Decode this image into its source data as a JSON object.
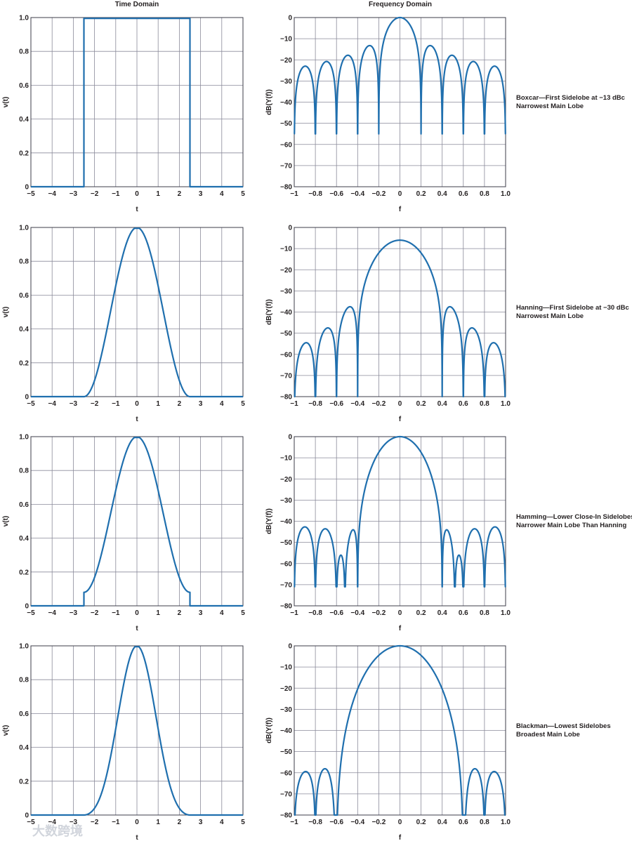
{
  "headers": {
    "time": "Time Domain",
    "freq": "Frequency Domain"
  },
  "watermark": "大数跨境",
  "colors": {
    "curve": "#1f6fae",
    "grid": "#8a8a9a",
    "frame": "#3c3c4a",
    "text": "#231f20"
  },
  "chart_data": [
    {
      "type": "line",
      "title": "",
      "xlabel": "t",
      "ylabel": "v(t)",
      "xlim": [
        -5,
        5
      ],
      "ylim": [
        0,
        1.0
      ],
      "xticks": [
        -5,
        -4,
        -3,
        -2,
        -1,
        0,
        1,
        2,
        3,
        4,
        5
      ],
      "yticks": [
        0,
        0.2,
        0.4,
        0.6,
        0.8,
        1.0
      ],
      "xtick_labels": [
        "−5",
        "−4",
        "−3",
        "−2",
        "−1",
        "0",
        "1",
        "2",
        "3",
        "4",
        "5"
      ],
      "ytick_labels": [
        "0",
        "0.2",
        "0.4",
        "0.6",
        "0.8",
        "1.0"
      ],
      "series": [
        {
          "name": "boxcar",
          "window": "boxcar",
          "support": [
            -2.5,
            2.5
          ]
        }
      ]
    },
    {
      "type": "line",
      "title": "",
      "xlabel": "f",
      "ylabel": "dB(Y(f))",
      "xlim": [
        -1,
        1
      ],
      "ylim": [
        -80,
        0
      ],
      "xticks": [
        -1,
        -0.8,
        -0.6,
        -0.4,
        -0.2,
        0,
        0.2,
        0.4,
        0.6,
        0.8,
        1.0
      ],
      "yticks": [
        0,
        -10,
        -20,
        -30,
        -40,
        -50,
        -60,
        -70,
        -80
      ],
      "xtick_labels": [
        "−1",
        "−0.8",
        "−0.6",
        "−0.4",
        "−0.2",
        "0",
        "0.2",
        "0.4",
        "0.6",
        "0.8",
        "1.0"
      ],
      "ytick_labels": [
        "0",
        "−10",
        "−20",
        "−30",
        "−40",
        "−50",
        "−60",
        "−70",
        "−80"
      ],
      "series": [
        {
          "name": "boxcar spectrum",
          "window": "boxcar",
          "null_spacing": 0.1,
          "floor_db": -55
        }
      ],
      "caption": [
        "Boxcar—First Sidelobe at −13 dBc",
        "Narrowest Main Lobe"
      ]
    },
    {
      "type": "line",
      "title": "",
      "xlabel": "t",
      "ylabel": "v(t)",
      "xlim": [
        -5,
        5
      ],
      "ylim": [
        0,
        1.0
      ],
      "xticks": [
        -5,
        -4,
        -3,
        -2,
        -1,
        0,
        1,
        2,
        3,
        4,
        5
      ],
      "yticks": [
        0,
        0.2,
        0.4,
        0.6,
        0.8,
        1.0
      ],
      "xtick_labels": [
        "−5",
        "−4",
        "−3",
        "−2",
        "−1",
        "0",
        "1",
        "2",
        "3",
        "4",
        "5"
      ],
      "ytick_labels": [
        "0",
        "0.2",
        "0.4",
        "0.6",
        "0.8",
        "1.0"
      ],
      "series": [
        {
          "name": "hanning",
          "window": "hanning",
          "support": [
            -2.5,
            2.5
          ]
        }
      ]
    },
    {
      "type": "line",
      "title": "",
      "xlabel": "f",
      "ylabel": "dB(Y(f))",
      "xlim": [
        -1,
        1
      ],
      "ylim": [
        -80,
        0
      ],
      "xticks": [
        -1,
        -0.8,
        -0.6,
        -0.4,
        -0.2,
        0,
        0.2,
        0.4,
        0.6,
        0.8,
        1.0
      ],
      "yticks": [
        0,
        -10,
        -20,
        -30,
        -40,
        -50,
        -60,
        -70,
        -80
      ],
      "xtick_labels": [
        "−1",
        "−0.8",
        "−0.6",
        "−0.4",
        "−0.2",
        "0",
        "0.2",
        "0.4",
        "0.6",
        "0.8",
        "1.0"
      ],
      "ytick_labels": [
        "0",
        "−10",
        "−20",
        "−30",
        "−40",
        "−50",
        "−60",
        "−70",
        "−80"
      ],
      "series": [
        {
          "name": "hanning spectrum",
          "window": "hanning",
          "null_spacing": 0.1,
          "floor_db": -80
        }
      ],
      "caption": [
        "Hanning—First Sidelobe at −30 dBc",
        "Narrowest Main Lobe"
      ]
    },
    {
      "type": "line",
      "title": "",
      "xlabel": "t",
      "ylabel": "v(t)",
      "xlim": [
        -5,
        5
      ],
      "ylim": [
        0,
        1.0
      ],
      "xticks": [
        -5,
        -4,
        -3,
        -2,
        -1,
        0,
        1,
        2,
        3,
        4,
        5
      ],
      "yticks": [
        0,
        0.2,
        0.4,
        0.6,
        0.8,
        1.0
      ],
      "xtick_labels": [
        "−5",
        "−4",
        "−3",
        "−2",
        "−1",
        "0",
        "1",
        "2",
        "3",
        "4",
        "5"
      ],
      "ytick_labels": [
        "0",
        "0.2",
        "0.4",
        "0.6",
        "0.8",
        "1.0"
      ],
      "series": [
        {
          "name": "hamming",
          "window": "hamming",
          "support": [
            -2.5,
            2.5
          ]
        }
      ]
    },
    {
      "type": "line",
      "title": "",
      "xlabel": "f",
      "ylabel": "dB(Y(f))",
      "xlim": [
        -1,
        1
      ],
      "ylim": [
        -80,
        0
      ],
      "xticks": [
        -1,
        -0.8,
        -0.6,
        -0.4,
        -0.2,
        0,
        0.2,
        0.4,
        0.6,
        0.8,
        1.0
      ],
      "yticks": [
        0,
        -10,
        -20,
        -30,
        -40,
        -50,
        -60,
        -70,
        -80
      ],
      "xtick_labels": [
        "−1",
        "−0.8",
        "−0.6",
        "−0.4",
        "−0.2",
        "0",
        "0.2",
        "0.4",
        "0.6",
        "0.8",
        "1.0"
      ],
      "ytick_labels": [
        "0",
        "−10",
        "−20",
        "−30",
        "−40",
        "−50",
        "−60",
        "−70",
        "−80"
      ],
      "series": [
        {
          "name": "hamming spectrum",
          "window": "hamming",
          "null_spacing": 0.1,
          "floor_db": -71
        }
      ],
      "caption": [
        "Hamming—Lower Close-In Sidelobes",
        "Narrower Main Lobe Than Hanning"
      ]
    },
    {
      "type": "line",
      "title": "",
      "xlabel": "t",
      "ylabel": "v(t)",
      "xlim": [
        -5,
        5
      ],
      "ylim": [
        0,
        1.0
      ],
      "xticks": [
        -5,
        -4,
        -3,
        -2,
        -1,
        0,
        1,
        2,
        3,
        4,
        5
      ],
      "yticks": [
        0,
        0.2,
        0.4,
        0.6,
        0.8,
        1.0
      ],
      "xtick_labels": [
        "−5",
        "−4",
        "−3",
        "−2",
        "−1",
        "0",
        "1",
        "2",
        "3",
        "4",
        "5"
      ],
      "ytick_labels": [
        "0",
        "0.2",
        "0.4",
        "0.6",
        "0.8",
        "1.0"
      ],
      "series": [
        {
          "name": "blackman",
          "window": "blackman",
          "support": [
            -2.5,
            2.5
          ]
        }
      ]
    },
    {
      "type": "line",
      "title": "",
      "xlabel": "f",
      "ylabel": "dB(Y(f))",
      "xlim": [
        -1,
        1
      ],
      "ylim": [
        -80,
        0
      ],
      "xticks": [
        -1,
        -0.8,
        -0.6,
        -0.4,
        -0.2,
        0,
        0.2,
        0.4,
        0.6,
        0.8,
        1.0
      ],
      "yticks": [
        0,
        -10,
        -20,
        -30,
        -40,
        -50,
        -60,
        -70,
        -80
      ],
      "xtick_labels": [
        "−1",
        "−0.8",
        "−0.6",
        "−0.4",
        "−0.2",
        "0",
        "0.2",
        "0.4",
        "0.6",
        "0.8",
        "1.0"
      ],
      "ytick_labels": [
        "0",
        "−10",
        "−20",
        "−30",
        "−40",
        "−50",
        "−60",
        "−70",
        "−80"
      ],
      "series": [
        {
          "name": "blackman spectrum",
          "window": "blackman",
          "null_spacing": 0.1,
          "floor_db": -80
        }
      ],
      "caption": [
        "Blackman—Lowest Sidelobes",
        "Broadest Main Lobe"
      ]
    }
  ]
}
